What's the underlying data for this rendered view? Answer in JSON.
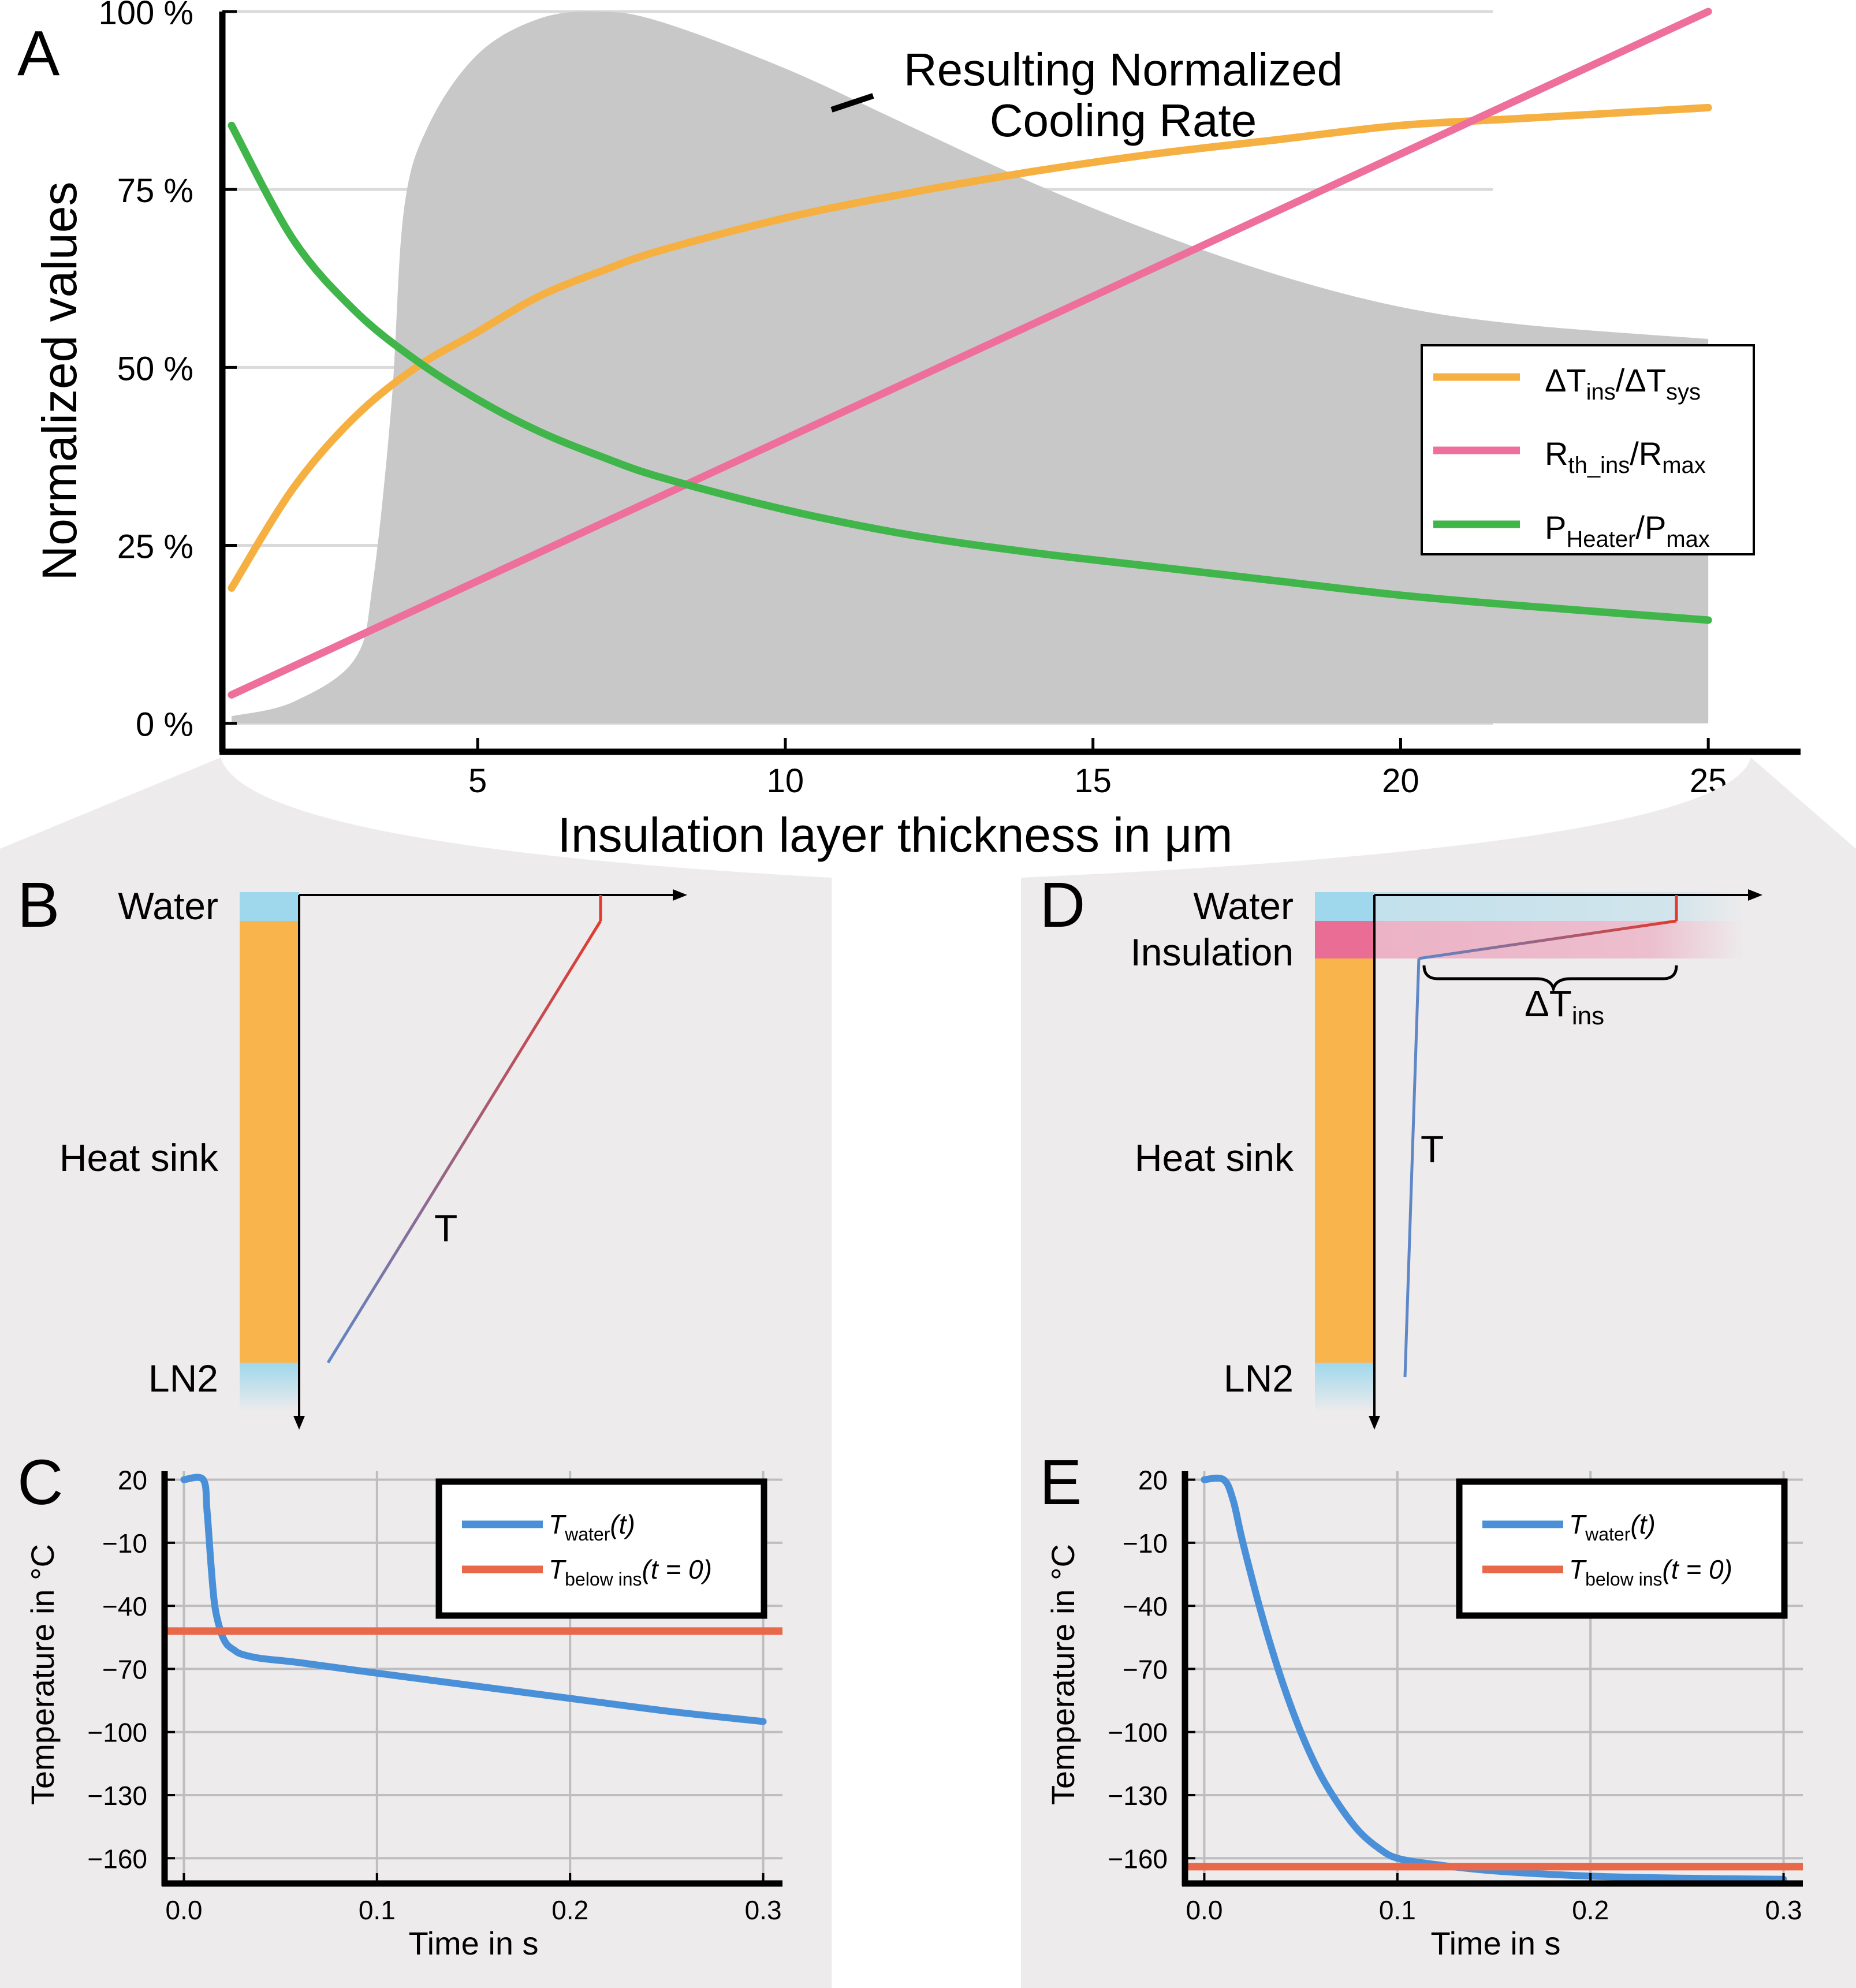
{
  "panel_labels": {
    "a": "A",
    "b": "B",
    "c": "C",
    "d": "D",
    "e": "E"
  },
  "colors": {
    "orange": "#F5B041",
    "pink": "#EE6F9B",
    "green": "#3FB54A",
    "gray_fill": "#C8C8C8",
    "panel_bg": "#EDEBEC",
    "heat_sink": "#F9B54B",
    "water": "#9FD8EC",
    "insulation": "#EA6D96",
    "blue_line": "#4A90D9",
    "red_line": "#E8684A",
    "temp_red": "#E23A2E",
    "temp_blue": "#5F86C6"
  },
  "chart_data": [
    {
      "id": "A",
      "type": "line",
      "title": "",
      "xlabel": "Insulation layer thickness in μm",
      "ylabel": "Normalized values",
      "xlim": [
        0.85,
        26.5
      ],
      "ylim": [
        -4,
        100
      ],
      "x_ticks": [
        5,
        10,
        15,
        20,
        25
      ],
      "x_tick_labels": [
        "5",
        "10",
        "15",
        "20",
        "25"
      ],
      "y_ticks": [
        0,
        25,
        50,
        75,
        100
      ],
      "y_tick_labels": [
        "0 %",
        "25 %",
        "50 %",
        "75 %",
        "100 %"
      ],
      "grid": "horizontal",
      "annotation": {
        "line1": "Resulting Normalized",
        "line2": "Cooling Rate"
      },
      "legend": {
        "placement": "right",
        "entries": [
          {
            "main": "ΔT",
            "sub": "ins",
            "main2": "/ΔT",
            "sub2": "sys",
            "series": "dt"
          },
          {
            "main": "R",
            "sub": "th_ins",
            "main2": "/R",
            "sub2": "max",
            "series": "r"
          },
          {
            "main": "P",
            "sub": "Heater",
            "main2": "/P",
            "sub2": "max",
            "series": "p"
          }
        ]
      },
      "area": {
        "name": "Resulting Normalized Cooling Rate",
        "x": [
          1,
          2,
          3,
          3.3,
          3.6,
          3.8,
          4.2,
          5,
          6,
          7,
          8,
          10,
          12,
          14,
          16,
          18,
          20,
          22,
          25
        ],
        "y": [
          1,
          3,
          9,
          20,
          45,
          72,
          84,
          94,
          99,
          100,
          98.5,
          92,
          84,
          76,
          69,
          63,
          58.5,
          56,
          54
        ]
      },
      "series": [
        {
          "name": "ΔT_ins/ΔT_sys",
          "key": "dt",
          "x": [
            1,
            2,
            3,
            4,
            5,
            6,
            7,
            8,
            10,
            12,
            14,
            16,
            18,
            20,
            22,
            25
          ],
          "y": [
            19,
            33,
            43,
            50,
            55,
            60,
            63.5,
            66.5,
            71,
            74.5,
            77.5,
            80,
            82,
            84,
            85,
            86.5
          ]
        },
        {
          "name": "R_th_ins/R_max",
          "key": "r",
          "x": [
            1,
            25
          ],
          "y": [
            4,
            100
          ]
        },
        {
          "name": "P_Heater/P_max",
          "key": "p",
          "x": [
            1,
            2,
            3,
            4,
            5,
            6,
            7,
            8,
            10,
            12,
            14,
            16,
            18,
            20,
            22,
            25
          ],
          "y": [
            84,
            68,
            58,
            51,
            45.5,
            41,
            37.5,
            34.5,
            30,
            26.5,
            24,
            22,
            20,
            18,
            16.5,
            14.5
          ]
        }
      ]
    },
    {
      "id": "C",
      "type": "line",
      "xlabel": "Time in s",
      "ylabel": "Temperature in °C",
      "xlim": [
        -0.01,
        0.31
      ],
      "ylim": [
        -172,
        24
      ],
      "x_ticks": [
        0.0,
        0.1,
        0.2,
        0.3
      ],
      "x_tick_labels": [
        "0.0",
        "0.1",
        "0.2",
        "0.3"
      ],
      "y_ticks": [
        20,
        -10,
        -40,
        -70,
        -100,
        -130,
        -160
      ],
      "y_tick_labels": [
        "20",
        "−10",
        "−40",
        "−70",
        "−100",
        "−130",
        "−160"
      ],
      "grid": "both",
      "legend": {
        "placement": "top-right",
        "entries": [
          {
            "main": "T",
            "sub": "water",
            "tail": "(t)",
            "color": "blue"
          },
          {
            "main": "T",
            "sub": "below ins",
            "tail": "(t = 0)",
            "color": "red"
          }
        ]
      },
      "series": [
        {
          "name": "T_water(t)",
          "x": [
            0,
            0.01,
            0.012,
            0.014,
            0.016,
            0.019,
            0.022,
            0.026,
            0.03,
            0.04,
            0.06,
            0.1,
            0.15,
            0.2,
            0.25,
            0.3
          ],
          "y": [
            20,
            20,
            5,
            -20,
            -40,
            -52,
            -58,
            -61,
            -63,
            -65,
            -67,
            -72,
            -78,
            -84,
            -90,
            -95
          ]
        },
        {
          "name": "T_below ins(t=0)",
          "x": [
            -0.01,
            0.31
          ],
          "y": [
            -52,
            -52
          ]
        }
      ]
    },
    {
      "id": "E",
      "type": "line",
      "xlabel": "Time in s",
      "ylabel": "Temperature in °C",
      "xlim": [
        -0.01,
        0.31
      ],
      "ylim": [
        -172,
        24
      ],
      "x_ticks": [
        0.0,
        0.1,
        0.2,
        0.3
      ],
      "x_tick_labels": [
        "0.0",
        "0.1",
        "0.2",
        "0.3"
      ],
      "y_ticks": [
        20,
        -10,
        -40,
        -70,
        -100,
        -130,
        -160
      ],
      "y_tick_labels": [
        "20",
        "−10",
        "−40",
        "−70",
        "−100",
        "−130",
        "−160"
      ],
      "grid": "both",
      "legend": {
        "placement": "top-right",
        "entries": [
          {
            "main": "T",
            "sub": "water",
            "tail": "(t)",
            "color": "blue"
          },
          {
            "main": "T",
            "sub": "below ins",
            "tail": "(t = 0)",
            "color": "red"
          }
        ]
      },
      "series": [
        {
          "name": "T_water(t)",
          "x": [
            0,
            0.01,
            0.015,
            0.02,
            0.03,
            0.04,
            0.05,
            0.06,
            0.07,
            0.08,
            0.09,
            0.1,
            0.12,
            0.15,
            0.2,
            0.25,
            0.3
          ],
          "y": [
            20,
            20,
            10,
            -10,
            -45,
            -75,
            -100,
            -120,
            -135,
            -147,
            -155,
            -160,
            -163,
            -166,
            -168.5,
            -169.5,
            -170
          ]
        },
        {
          "name": "T_below ins(t=0)",
          "x": [
            -0.01,
            0.31
          ],
          "y": [
            -164,
            -164
          ]
        }
      ]
    }
  ],
  "panel_b": {
    "water": "Water",
    "heat_sink": "Heat sink",
    "ln2": "LN2",
    "t_label": "T"
  },
  "panel_d": {
    "water": "Water",
    "insulation": "Insulation",
    "heat_sink": "Heat sink",
    "ln2": "LN2",
    "t_label": "T",
    "delta_main": "ΔT",
    "delta_sub": "ins"
  }
}
